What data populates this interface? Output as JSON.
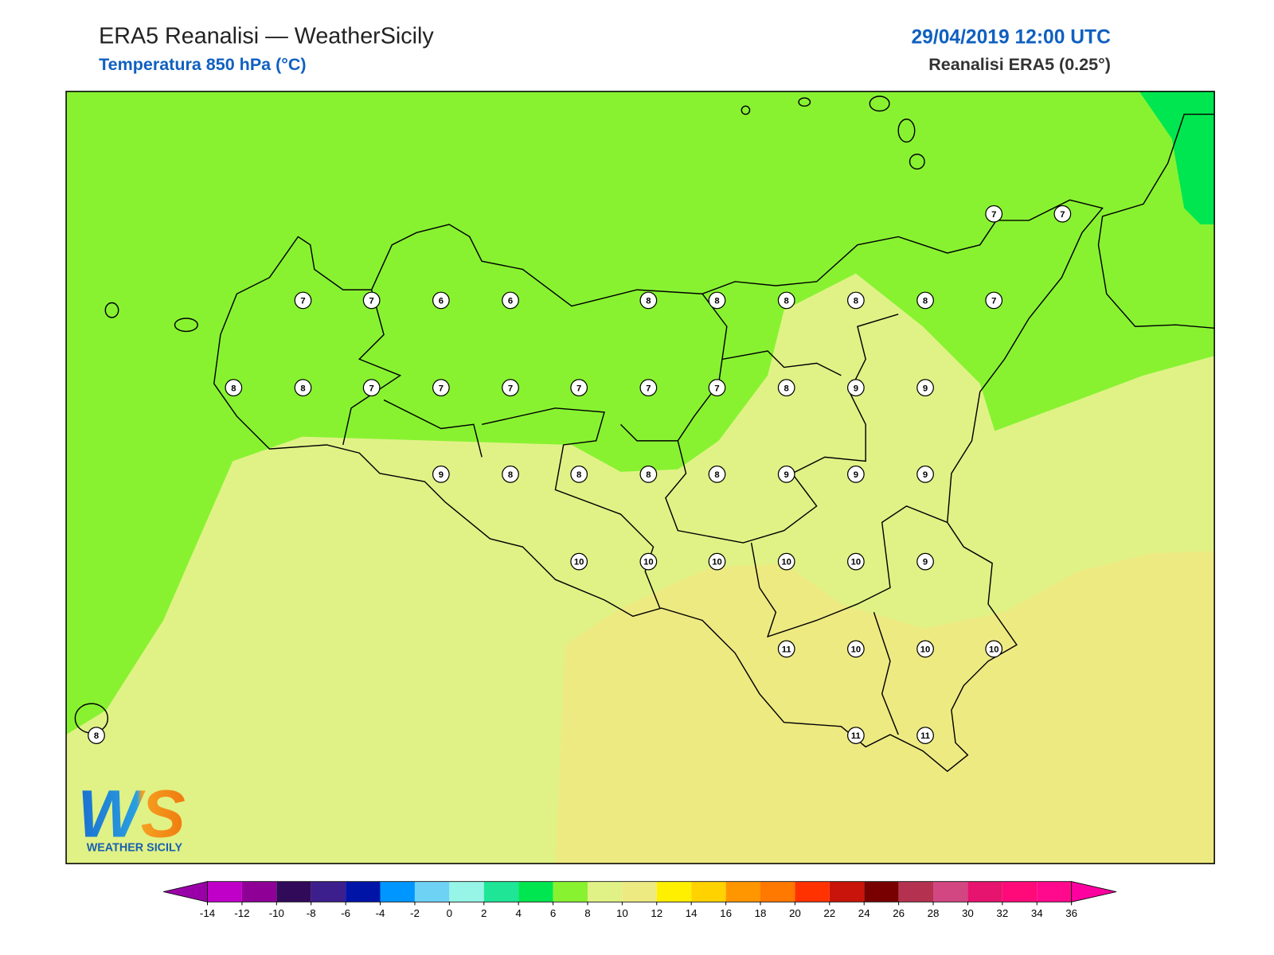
{
  "header": {
    "title": "ERA5 Reanalisi — WeatherSicily",
    "subtitle": "Temperatura 850 hPa (°C)",
    "datetime": "29/04/2019 12:00 UTC",
    "source": "Reanalisi ERA5 (0.25°)"
  },
  "stations": [
    7,
    7,
    7,
    7,
    6,
    6,
    8,
    8,
    8,
    8,
    8,
    7,
    8,
    8,
    7,
    7,
    7,
    7,
    7,
    7,
    8,
    9,
    9,
    9,
    8,
    8,
    8,
    8,
    9,
    9,
    9,
    10,
    10,
    10,
    10,
    10,
    9,
    11,
    10,
    10,
    10,
    8,
    11,
    11
  ],
  "colorbar": {
    "ticks": [
      -14,
      -12,
      -10,
      -8,
      -6,
      -4,
      -2,
      0,
      2,
      4,
      6,
      8,
      10,
      12,
      14,
      16,
      18,
      20,
      22,
      24,
      26,
      28,
      30,
      32,
      34,
      36
    ],
    "under": "#9a00a8",
    "over": "#ff00a0",
    "colors": [
      "#c000c8",
      "#8f0096",
      "#320a5a",
      "#3c1e8c",
      "#0014a8",
      "#0096ff",
      "#6ed2f5",
      "#96f5e6",
      "#1ee696",
      "#00e650",
      "#88f231",
      "#e0f286",
      "#eeea82",
      "#fff000",
      "#ffd200",
      "#ff9600",
      "#ff7800",
      "#ff3200",
      "#c8140a",
      "#780000",
      "#b43250",
      "#d24682",
      "#e6146e",
      "#ff0a78",
      "#ff0a8c"
    ]
  },
  "logo": {
    "mark": "WS",
    "text": "WEATHER SICILY"
  }
}
